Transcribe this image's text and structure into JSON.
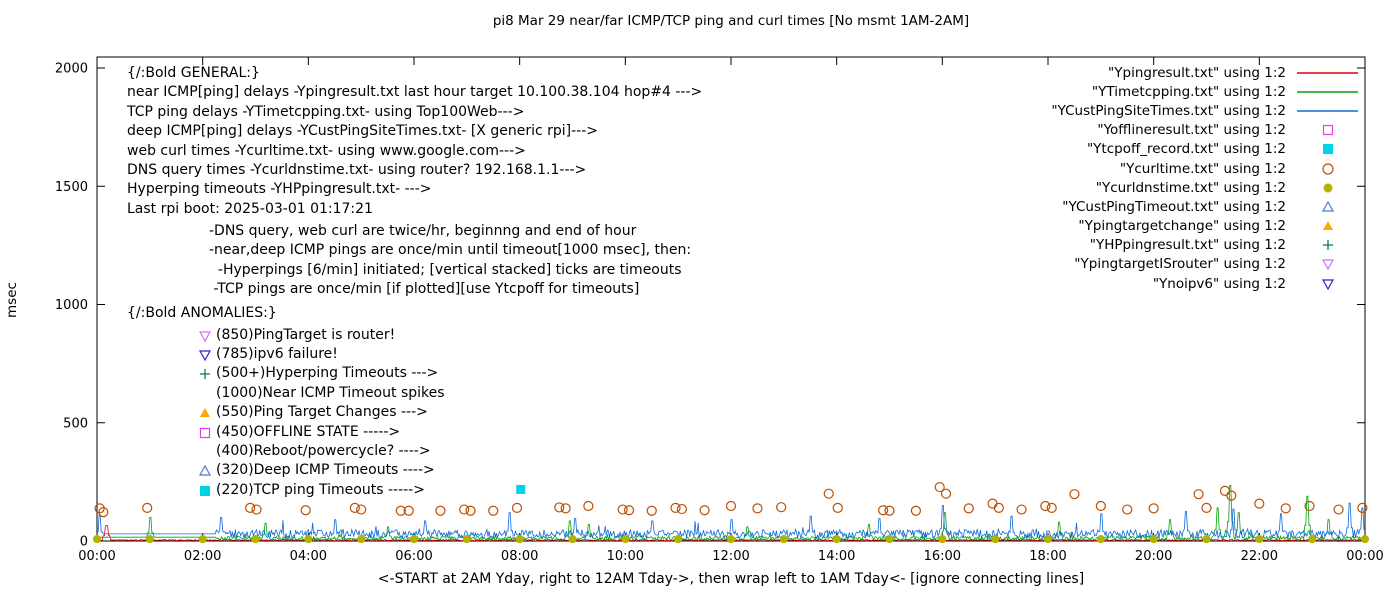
{
  "colors": {
    "red": "#e60000",
    "green": "#00a400",
    "blue": "#0d6ad8",
    "magenta": "#ea3cea",
    "cyan": "#00d4e4",
    "darkorange": "#c04e00",
    "olive": "#b2b200",
    "lightblue": "#4a7ad0",
    "orange": "#ffaa00",
    "darkgreen": "#00845c",
    "violet": "#ce72ee",
    "navy": "#2626cc",
    "border": "#000000"
  },
  "annotations": {
    "general": [
      "{/:Bold GENERAL:}",
      "near ICMP[ping] delays -Ypingresult.txt last hour target 10.100.38.104 hop#4 --->",
      "TCP ping delays -YTimetcpping.txt- using Top100Web--->",
      "deep ICMP[ping] delays -YCustPingSiteTimes.txt- [X generic rpi]--->",
      "web curl times -Ycurltime.txt- using www.google.com--->",
      "DNS query times -Ycurldnstime.txt- using router? 192.168.1.1--->",
      "Hyperping timeouts -YHPpingresult.txt- --->",
      "Last rpi boot: 2025-03-01 01:17:21"
    ],
    "notes": [
      "-DNS query, web curl are twice/hr, beginnng and end of hour",
      "-near,deep ICMP pings are once/min until timeout[1000 msec], then:",
      "  -Hyperpings [6/min] initiated; [vertical stacked] ticks are timeouts",
      " -TCP pings are once/min [if plotted][use Ytcpoff for timeouts]"
    ],
    "anomalies_header": "{/:Bold ANOMALIES:}",
    "anomalies": [
      {
        "marker": "tri-down-open",
        "color": "violet",
        "text": "(850)PingTarget is router!"
      },
      {
        "marker": "tri-down-open",
        "color": "navy",
        "text": "(785)ipv6 failure!"
      },
      {
        "marker": "plus",
        "color": "darkgreen",
        "text": "(500+)Hyperping Timeouts --->"
      },
      {
        "marker": "none",
        "color": "",
        "text": "(1000)Near ICMP Timeout spikes"
      },
      {
        "marker": "tri-up-filled",
        "color": "orange",
        "text": "(550)Ping Target Changes --->"
      },
      {
        "marker": "square-open",
        "color": "magenta",
        "text": "(450)OFFLINE STATE ----->"
      },
      {
        "marker": "none",
        "color": "",
        "text": "(400)Reboot/powercycle? ---->"
      },
      {
        "marker": "tri-up-open",
        "color": "lightblue",
        "text": "(320)Deep ICMP Timeouts ---->"
      },
      {
        "marker": "square-filled",
        "color": "cyan",
        "text": "(220)TCP ping Timeouts ----->"
      }
    ]
  },
  "chart_data": {
    "type": "line",
    "title": "pi8 Mar 29  near/far ICMP/TCP ping and curl times [No msmt 1AM-2AM]",
    "ylabel": "msec",
    "xlabel": "<-START at 2AM Yday, right to 12AM Tday->, then wrap left to 1AM Tday<- [ignore connecting lines]",
    "ylim": [
      0,
      2000
    ],
    "xlim_hours": [
      0,
      24
    ],
    "yticks": [
      0,
      500,
      1000,
      1500,
      2000
    ],
    "xtick_labels": [
      "00:00",
      "02:00",
      "04:00",
      "06:00",
      "08:00",
      "10:00",
      "12:00",
      "14:00",
      "16:00",
      "18:00",
      "20:00",
      "22:00",
      "00:00"
    ],
    "grid": false,
    "legend_position": "top-right",
    "legend": [
      {
        "label": "\"Ypingresult.txt\" using 1:2",
        "symbol": "line",
        "color": "red"
      },
      {
        "label": "\"YTimetcpping.txt\" using 1:2",
        "symbol": "line",
        "color": "green"
      },
      {
        "label": "\"YCustPingSiteTimes.txt\" using 1:2",
        "symbol": "line",
        "color": "blue"
      },
      {
        "label": "\"Yofflineresult.txt\" using 1:2",
        "symbol": "square-open",
        "color": "magenta"
      },
      {
        "label": "\"Ytcpoff_record.txt\" using 1:2",
        "symbol": "square-filled",
        "color": "cyan"
      },
      {
        "label": "\"Ycurltime.txt\" using 1:2",
        "symbol": "circle-open",
        "color": "darkorange"
      },
      {
        "label": "\"Ycurldnstime.txt\" using 1:2",
        "symbol": "circle-filled",
        "color": "olive"
      },
      {
        "label": "\"YCustPingTimeout.txt\" using 1:2",
        "symbol": "tri-up-open",
        "color": "lightblue"
      },
      {
        "label": "\"Ypingtargetchange\" using 1:2",
        "symbol": "tri-up-filled",
        "color": "orange"
      },
      {
        "label": "\"YHPpingresult.txt\" using 1:2",
        "symbol": "plus",
        "color": "darkgreen"
      },
      {
        "label": "\"YpingtargetISrouter\" using 1:2",
        "symbol": "tri-down-open",
        "color": "violet"
      },
      {
        "label": "\"Ynoipv6\" using 1:2",
        "symbol": "tri-down-open",
        "color": "navy"
      }
    ],
    "series": [
      {
        "name": "Ypingresult.txt",
        "role": "near ICMP ping delay",
        "color": "red",
        "base": 4,
        "noise": 2.5,
        "spikes": [
          [
            0.18,
            65
          ]
        ]
      },
      {
        "name": "YTimetcpping.txt",
        "role": "TCP ping delay",
        "color": "green",
        "base": 12,
        "noise": 8,
        "flat_until": 2.25,
        "flat_value": 16,
        "spikes": [
          [
            1.02,
            100
          ],
          [
            3.2,
            75
          ],
          [
            5.5,
            60
          ],
          [
            8.95,
            85
          ],
          [
            9.3,
            70
          ],
          [
            12.3,
            60
          ],
          [
            14.6,
            70
          ],
          [
            16.05,
            120
          ],
          [
            18.2,
            80
          ],
          [
            20.3,
            90
          ],
          [
            21.2,
            140
          ],
          [
            21.45,
            235
          ],
          [
            21.6,
            120
          ],
          [
            22.9,
            190
          ],
          [
            23.3,
            90
          ]
        ]
      },
      {
        "name": "YCustPingSiteTimes.txt",
        "role": "deep ICMP ping delay",
        "color": "blue",
        "base": 30,
        "noise": 18,
        "flat_until": 2.25,
        "flat_value": 30,
        "spikes": [
          [
            0.05,
            110
          ],
          [
            2.35,
            100
          ],
          [
            4.5,
            90
          ],
          [
            6.2,
            85
          ],
          [
            7.8,
            120
          ],
          [
            9.05,
            95
          ],
          [
            10.5,
            85
          ],
          [
            12.0,
            90
          ],
          [
            13.5,
            105
          ],
          [
            14.8,
            95
          ],
          [
            16.0,
            150
          ],
          [
            17.3,
            105
          ],
          [
            19.0,
            115
          ],
          [
            20.6,
            125
          ],
          [
            21.5,
            135
          ],
          [
            22.4,
            115
          ],
          [
            23.7,
            160
          ],
          [
            23.95,
            140
          ]
        ]
      }
    ],
    "scatter": [
      {
        "name": "Ycurltime.txt",
        "role": "web curl times",
        "symbol": "circle-open",
        "color": "darkorange",
        "points": [
          [
            0.05,
            138
          ],
          [
            0.12,
            122
          ],
          [
            0.95,
            140
          ],
          [
            2.9,
            140
          ],
          [
            3.02,
            133
          ],
          [
            3.95,
            130
          ],
          [
            4.88,
            140
          ],
          [
            5.0,
            133
          ],
          [
            5.75,
            128
          ],
          [
            5.9,
            128
          ],
          [
            6.5,
            128
          ],
          [
            6.95,
            133
          ],
          [
            7.07,
            128
          ],
          [
            7.5,
            128
          ],
          [
            7.95,
            140
          ],
          [
            8.75,
            142
          ],
          [
            8.87,
            138
          ],
          [
            9.3,
            148
          ],
          [
            9.95,
            133
          ],
          [
            10.07,
            130
          ],
          [
            10.5,
            128
          ],
          [
            10.95,
            140
          ],
          [
            11.07,
            135
          ],
          [
            11.5,
            130
          ],
          [
            12.0,
            148
          ],
          [
            12.5,
            138
          ],
          [
            12.95,
            143
          ],
          [
            13.85,
            200
          ],
          [
            14.02,
            140
          ],
          [
            14.88,
            130
          ],
          [
            15.0,
            128
          ],
          [
            15.5,
            128
          ],
          [
            15.95,
            228
          ],
          [
            16.07,
            200
          ],
          [
            16.5,
            138
          ],
          [
            16.95,
            158
          ],
          [
            17.07,
            140
          ],
          [
            17.5,
            133
          ],
          [
            17.95,
            148
          ],
          [
            18.07,
            140
          ],
          [
            18.5,
            198
          ],
          [
            19.0,
            148
          ],
          [
            19.5,
            133
          ],
          [
            20.0,
            138
          ],
          [
            20.85,
            198
          ],
          [
            21.0,
            140
          ],
          [
            21.35,
            212
          ],
          [
            21.47,
            192
          ],
          [
            22.0,
            158
          ],
          [
            22.5,
            138
          ],
          [
            22.95,
            148
          ],
          [
            23.5,
            133
          ],
          [
            23.95,
            140
          ]
        ]
      },
      {
        "name": "Ycurldnstime.txt",
        "role": "DNS query times",
        "symbol": "circle-filled",
        "color": "olive",
        "points": [
          [
            0,
            8
          ],
          [
            1,
            8
          ],
          [
            2,
            8
          ],
          [
            3,
            8
          ],
          [
            4,
            8
          ],
          [
            5,
            8
          ],
          [
            6,
            8
          ],
          [
            7,
            8
          ],
          [
            8,
            8
          ],
          [
            9,
            8
          ],
          [
            10,
            8
          ],
          [
            11,
            8
          ],
          [
            12,
            8
          ],
          [
            13,
            8
          ],
          [
            14,
            8
          ],
          [
            15,
            8
          ],
          [
            16,
            8
          ],
          [
            17,
            8
          ],
          [
            18,
            8
          ],
          [
            19,
            8
          ],
          [
            20,
            8
          ],
          [
            21,
            8
          ],
          [
            22,
            8
          ],
          [
            23,
            8
          ],
          [
            24,
            8
          ]
        ]
      },
      {
        "name": "Ytcpoff_record.txt",
        "role": "TCP ping timeout record",
        "symbol": "square-filled",
        "color": "cyan",
        "points": [
          [
            8.02,
            218
          ]
        ]
      }
    ]
  }
}
